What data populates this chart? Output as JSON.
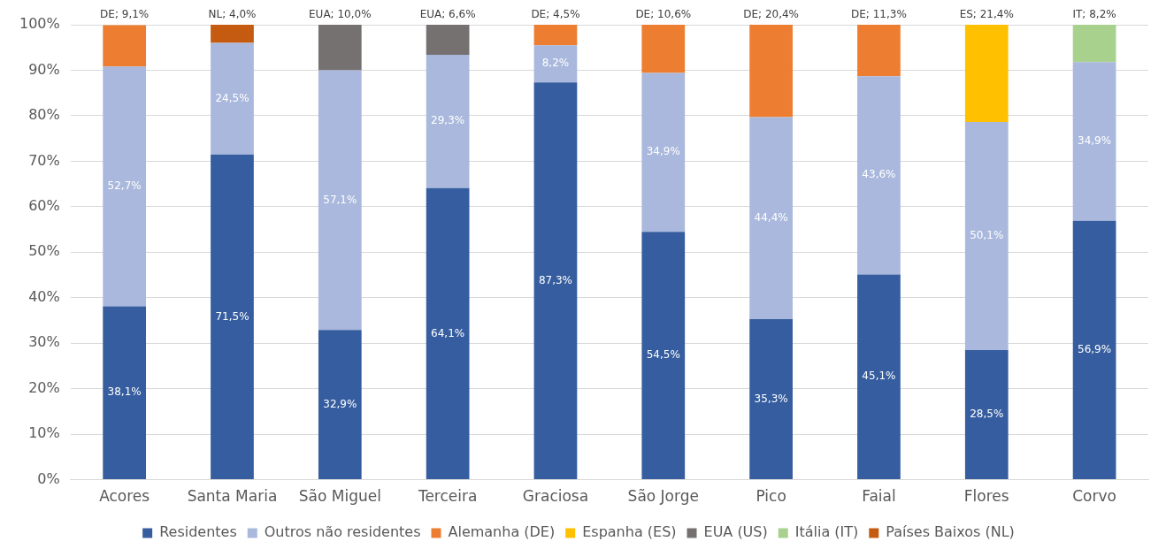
{
  "chart_data": {
    "type": "bar",
    "stacked": true,
    "categories": [
      "Acores",
      "Santa Maria",
      "São Miguel",
      "Terceira",
      "Graciosa",
      "São Jorge",
      "Pico",
      "Faial",
      "Flores",
      "Corvo"
    ],
    "series": [
      {
        "name": "Residentes",
        "color": "#355d9f",
        "values": [
          38.1,
          71.5,
          32.9,
          64.1,
          87.3,
          54.5,
          35.3,
          45.1,
          28.5,
          56.9
        ],
        "value_labels": [
          "38,1%",
          "71,5%",
          "32,9%",
          "64,1%",
          "87,3%",
          "54,5%",
          "35,3%",
          "45,1%",
          "28,5%",
          "56,9%"
        ]
      },
      {
        "name": "Outros não residentes",
        "color": "#a9b8dc",
        "values": [
          52.7,
          24.5,
          57.1,
          29.3,
          8.2,
          34.9,
          44.4,
          43.6,
          50.1,
          34.9
        ],
        "value_labels": [
          "52,7%",
          "24,5%",
          "57,1%",
          "29,3%",
          "8,2%",
          "34,9%",
          "44,4%",
          "43,6%",
          "50,1%",
          "34,9%"
        ]
      },
      {
        "name": "Alemanha (DE)",
        "color": "#ed7d31",
        "values": [
          9.1,
          null,
          null,
          null,
          4.5,
          10.6,
          20.4,
          11.3,
          null,
          null
        ],
        "value_labels": [
          "DE; 9,1%",
          null,
          null,
          null,
          "DE; 4,5%",
          "DE; 10,6%",
          "DE; 20,4%",
          "DE; 11,3%",
          null,
          null
        ]
      },
      {
        "name": "Espanha (ES)",
        "color": "#ffc000",
        "values": [
          null,
          null,
          null,
          null,
          null,
          null,
          null,
          null,
          21.4,
          null
        ],
        "value_labels": [
          null,
          null,
          null,
          null,
          null,
          null,
          null,
          null,
          "ES; 21,4%",
          null
        ]
      },
      {
        "name": "EUA (US)",
        "color": "#767171",
        "values": [
          null,
          null,
          10.0,
          6.6,
          null,
          null,
          null,
          null,
          null,
          null
        ],
        "value_labels": [
          null,
          null,
          "EUA; 10,0%",
          "EUA; 6,6%",
          null,
          null,
          null,
          null,
          null,
          null
        ]
      },
      {
        "name": "Itália (IT)",
        "color": "#a9d18e",
        "values": [
          null,
          null,
          null,
          null,
          null,
          null,
          null,
          null,
          null,
          8.2
        ],
        "value_labels": [
          null,
          null,
          null,
          null,
          null,
          null,
          null,
          null,
          null,
          "IT; 8,2%"
        ]
      },
      {
        "name": "Países Baixos (NL)",
        "color": "#c55a11",
        "values": [
          null,
          4.0,
          null,
          null,
          null,
          null,
          null,
          null,
          null,
          null
        ],
        "value_labels": [
          null,
          "NL; 4,0%",
          null,
          null,
          null,
          null,
          null,
          null,
          null,
          null
        ]
      }
    ],
    "ylim": [
      0,
      100
    ],
    "yticks": [
      {
        "value": 0,
        "label": "0%"
      },
      {
        "value": 10,
        "label": "10%"
      },
      {
        "value": 20,
        "label": "20%"
      },
      {
        "value": 30,
        "label": "30%"
      },
      {
        "value": 40,
        "label": "40%"
      },
      {
        "value": 50,
        "label": "50%"
      },
      {
        "value": 60,
        "label": "60%"
      },
      {
        "value": 70,
        "label": "70%"
      },
      {
        "value": 80,
        "label": "80%"
      },
      {
        "value": 90,
        "label": "90%"
      },
      {
        "value": 100,
        "label": "100%"
      }
    ],
    "grid": "y",
    "legend": "bottom"
  }
}
